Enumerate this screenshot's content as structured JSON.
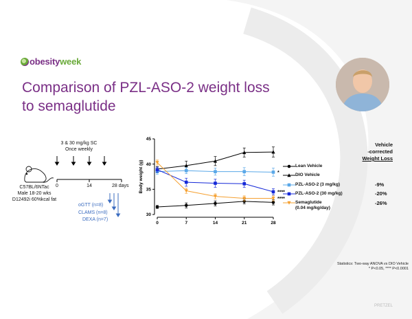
{
  "header": {
    "logo_text_a": "obesity",
    "logo_text_b": "week",
    "title": "Comparison of PZL-ASO-2 weight loss to semaglutide"
  },
  "photo": {
    "icon": "presenter-photo"
  },
  "study": {
    "dose_line1": "3 & 30 mg/kg SC",
    "dose_line2": "Once weekly",
    "mouse_line1": "C57BL/6NTac",
    "mouse_line2": "Male 18-20 wks",
    "mouse_line3": "D12492i 60%kcal fat",
    "timeline_ticks": [
      "0",
      "14",
      "28 days"
    ],
    "ogtt": "oGTT (n=8)",
    "clams": "CLAMS (n=8)",
    "dexa": "DEXA (n=7)"
  },
  "chart_data": {
    "type": "line",
    "ylabel": "Body weight (g)",
    "x": [
      0,
      7,
      14,
      21,
      28
    ],
    "xticks": [
      "0",
      "7",
      "14",
      "21",
      "28"
    ],
    "yticks": [
      "30",
      "35",
      "40",
      "45"
    ],
    "ylim": [
      30,
      45
    ],
    "series": [
      {
        "name": "Lean Vehicle",
        "color": "#000000",
        "marker": "circle",
        "values": [
          31.5,
          31.8,
          32.2,
          32.6,
          32.4
        ],
        "err": [
          0.3,
          0.5,
          0.5,
          0.5,
          0.5
        ],
        "sig": "",
        "pct": ""
      },
      {
        "name": "DIO Vehicle",
        "color": "#000000",
        "marker": "triangle",
        "values": [
          39.0,
          39.7,
          40.6,
          42.3,
          42.4
        ],
        "err": [
          0.5,
          0.9,
          0.9,
          0.9,
          1.0
        ],
        "sig": "",
        "pct": ""
      },
      {
        "name": "PZL-ASO-2 (3 mg/kg)",
        "color": "#5aa8e8",
        "marker": "square",
        "values": [
          38.5,
          38.7,
          38.5,
          38.5,
          38.4
        ],
        "err": [
          0.5,
          0.6,
          0.7,
          0.8,
          0.8
        ],
        "sig": "*",
        "pct": "-9%"
      },
      {
        "name": "PZL-ASO-2 (30 mg/kg)",
        "color": "#1428d8",
        "marker": "square",
        "values": [
          38.9,
          36.4,
          36.2,
          36.1,
          34.5
        ],
        "err": [
          0.5,
          0.8,
          0.8,
          0.7,
          0.6
        ],
        "sig": "****",
        "pct": "-20%"
      },
      {
        "name": "Semaglutide\n(0.04 mg/kg/day)",
        "color": "#f5a030",
        "marker": "triangle-down",
        "values": [
          40.3,
          34.7,
          33.6,
          33.2,
          33.2
        ],
        "err": [
          0.5,
          0.5,
          0.5,
          0.5,
          0.5
        ],
        "sig": "****",
        "pct": "-26%"
      }
    ]
  },
  "legend": {
    "head1": "Vehicle",
    "head2": "-corrected",
    "head3": "Weight Loss",
    "items": [
      "Lean Vehicle",
      "DIO Vehicle",
      "PZL-ASO-2 (3 mg/kg)",
      "PZL-ASO-2 (30 mg/kg)",
      "Semaglutide",
      "(0.04 mg/kg/day)"
    ],
    "pcts": [
      "-9%",
      "-20%",
      "-26%"
    ]
  },
  "footer": {
    "stats_line1": "Statistics: Two-way ANOVA vs DIO Vehicle",
    "stats_line2": "* P<0.05, **** P<0.0001",
    "watermark": "PRETZEL"
  }
}
